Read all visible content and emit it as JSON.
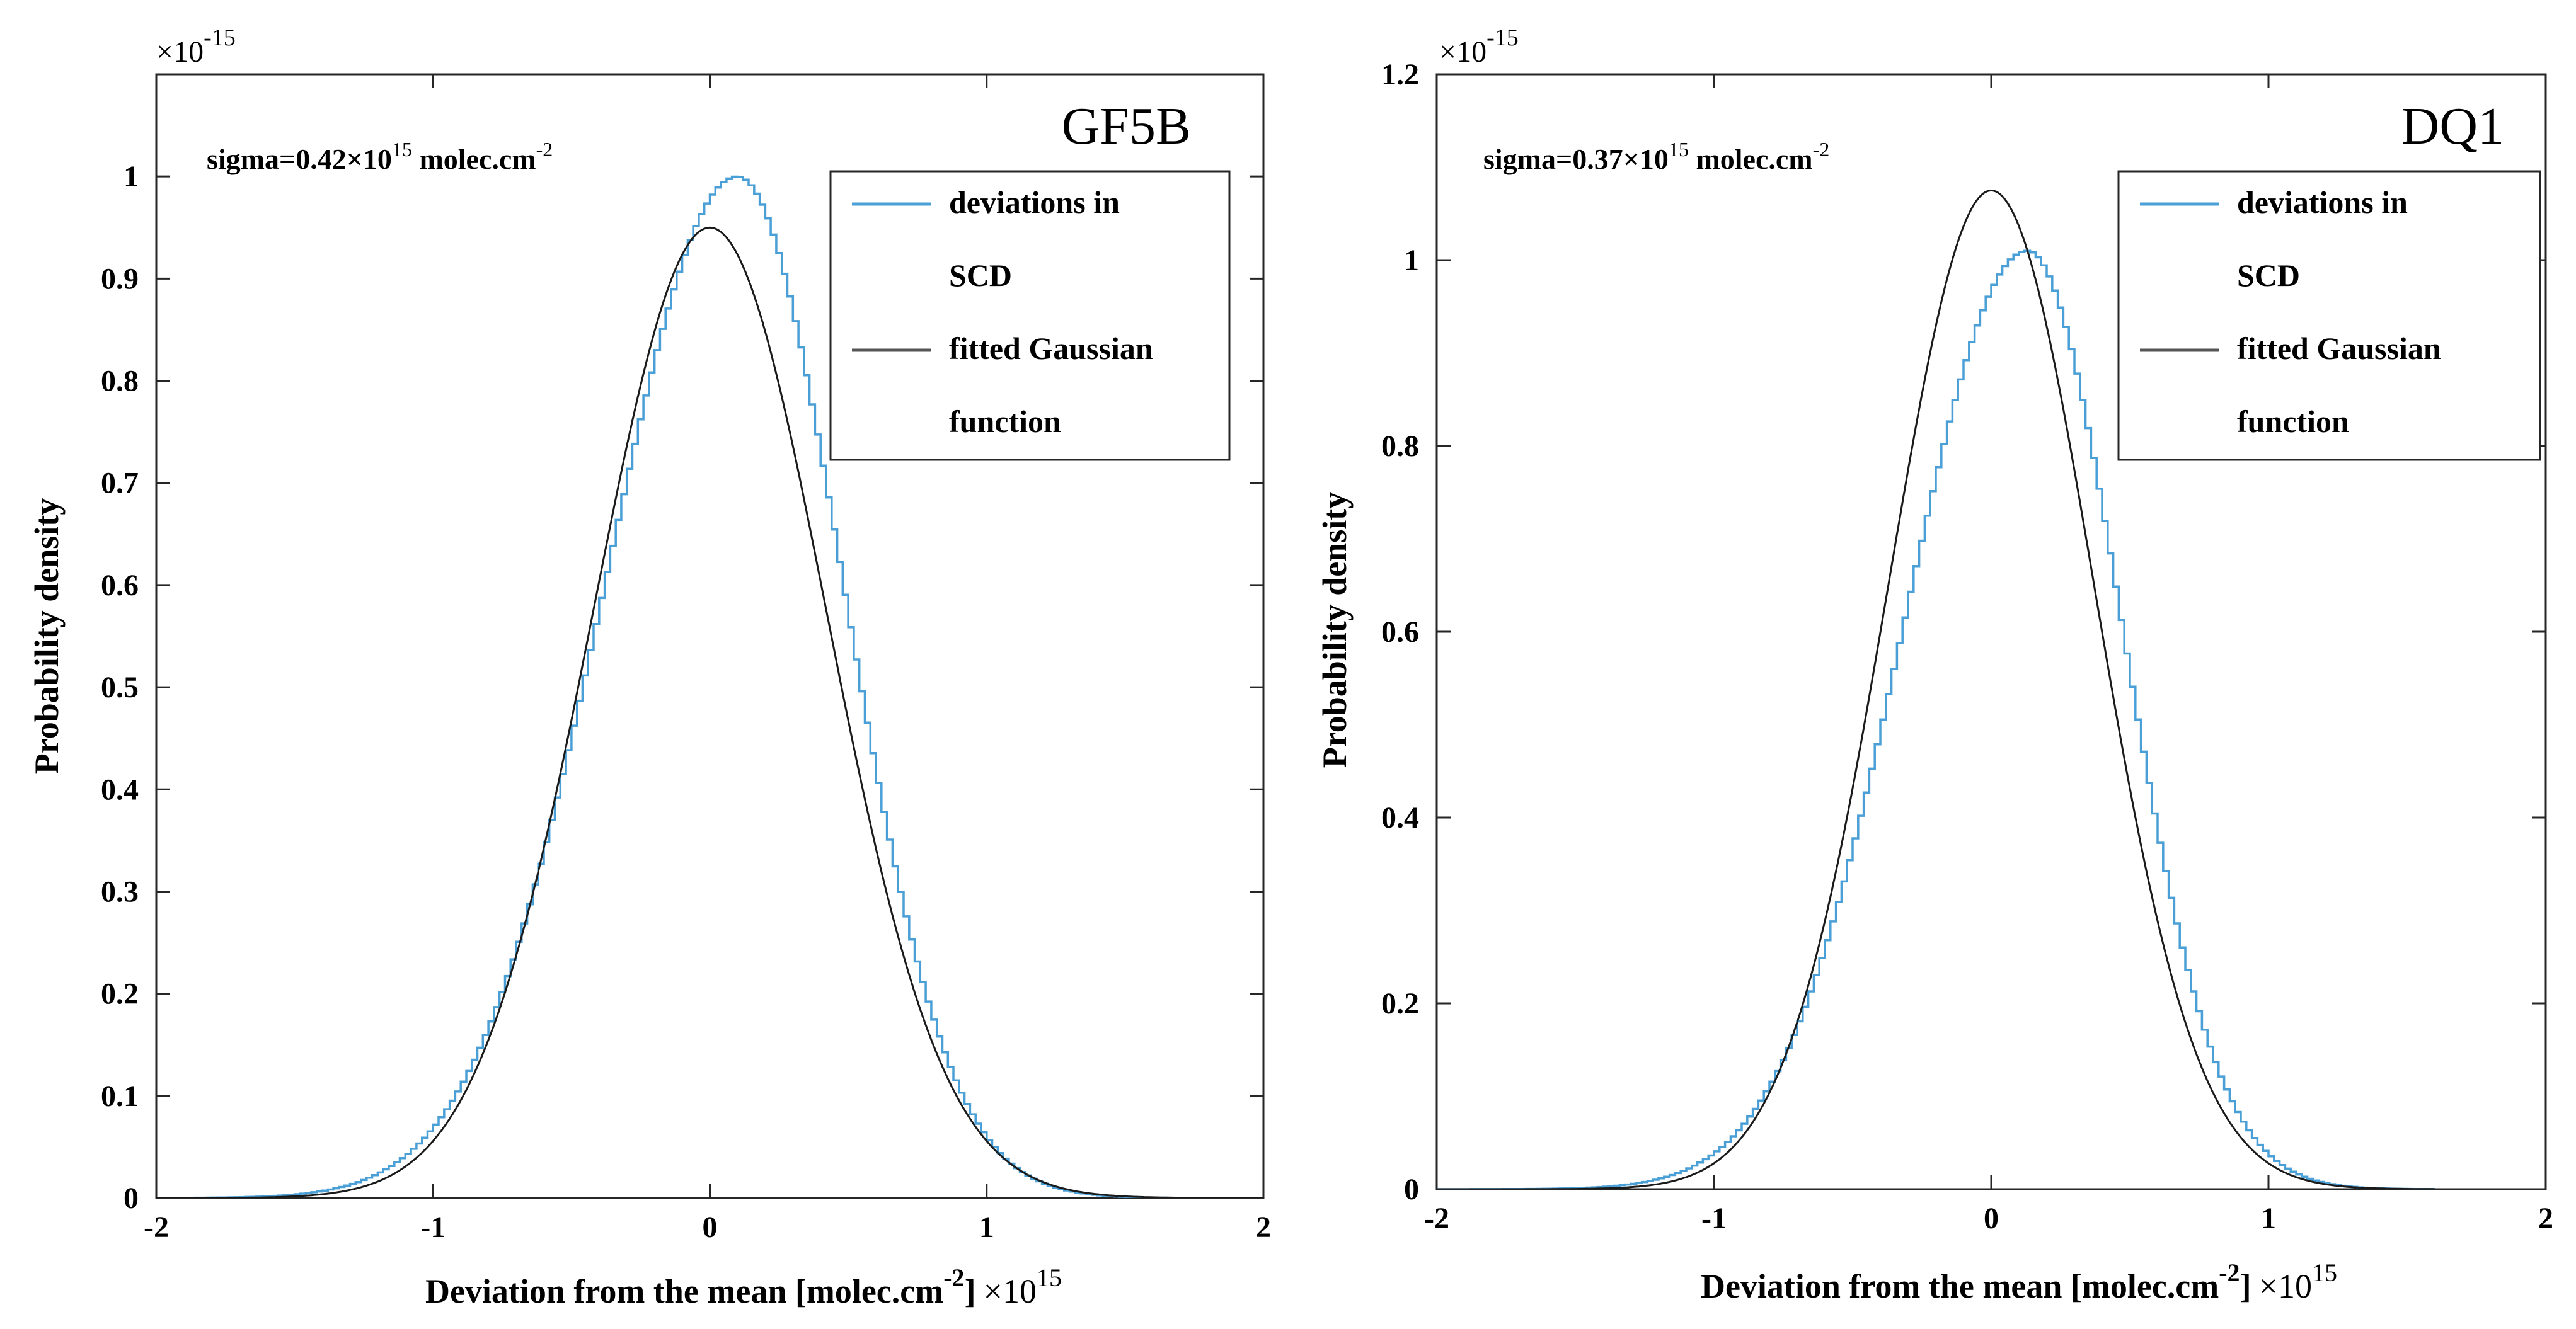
{
  "chart_data": [
    {
      "type": "line",
      "panel_label": "GF5B",
      "annotation": {
        "prefix": "sigma=0.42×10",
        "sup": "15",
        "suffix": " molec.cm",
        "sup2": "-2"
      },
      "xlabel": {
        "main": "Deviation from the mean [molec.cm",
        "sup": "-2",
        "bracket": "]",
        "times": "×10",
        "sup2": "15"
      },
      "ylabel": "Probability density",
      "y_exponent": {
        "base": "×10",
        "sup": "-15"
      },
      "xlim": [
        -2,
        2
      ],
      "ylim": [
        0,
        1.1
      ],
      "xticks": [
        -2,
        -1,
        0,
        1,
        2
      ],
      "xtick_labels": [
        "-2",
        "-1",
        "0",
        "1",
        "2"
      ],
      "yticks": [
        0,
        0.1,
        0.2,
        0.3,
        0.4,
        0.5,
        0.6,
        0.7,
        0.8,
        0.9,
        1
      ],
      "ytick_labels": [
        "0",
        "0.1",
        "0.2",
        "0.3",
        "0.4",
        "0.5",
        "0.6",
        "0.7",
        "0.8",
        "0.9",
        "1"
      ],
      "legend": {
        "location": "top-right",
        "entries": [
          "deviations in",
          "SCD",
          "fitted Gaussian",
          "function"
        ]
      },
      "series": [
        {
          "name": "deviations in SCD",
          "kind": "histogram-stairs",
          "color": "#4a9fd6",
          "mu": 0.1,
          "sigma": 0.38,
          "peak": 1.0,
          "skew_left": 1.25,
          "bin_width": 0.02,
          "x_start": -2.0,
          "x_end": 2.0
        },
        {
          "name": "fitted Gaussian function",
          "kind": "gaussian",
          "color": "#1a1a1a",
          "mu": 0.0,
          "sigma": 0.42,
          "peak": 0.95,
          "x_start": -2.0,
          "x_end": 2.0
        }
      ]
    },
    {
      "type": "line",
      "panel_label": "DQ1",
      "annotation": {
        "prefix": "sigma=0.37×10",
        "sup": "15",
        "suffix": " molec.cm",
        "sup2": "-2"
      },
      "xlabel": {
        "main": "Deviation from the mean [molec.cm",
        "sup": "-2",
        "bracket": "]",
        "times": "×10",
        "sup2": "15"
      },
      "ylabel": "Probability density",
      "y_exponent": {
        "base": "×10",
        "sup": "-15"
      },
      "xlim": [
        -2,
        2
      ],
      "ylim": [
        0,
        1.2
      ],
      "xticks": [
        -2,
        -1,
        0,
        1,
        2
      ],
      "xtick_labels": [
        "-2",
        "-1",
        "0",
        "1",
        "2"
      ],
      "yticks": [
        0,
        0.2,
        0.4,
        0.6,
        0.8,
        1,
        1.2
      ],
      "ytick_labels": [
        "0",
        "0.2",
        "0.4",
        "0.6",
        "0.8",
        "1",
        "1.2"
      ],
      "legend": {
        "location": "top-right",
        "entries": [
          "deviations in",
          "SCD",
          "fitted Gaussian",
          "function"
        ]
      },
      "series": [
        {
          "name": "deviations in SCD",
          "kind": "histogram-stairs",
          "color": "#4a9fd6",
          "mu": 0.13,
          "sigma": 0.34,
          "peak": 1.01,
          "skew_left": 1.3,
          "bin_width": 0.02,
          "x_start": -2.0,
          "x_end": 1.6
        },
        {
          "name": "fitted Gaussian function",
          "kind": "gaussian",
          "color": "#1a1a1a",
          "mu": 0.0,
          "sigma": 0.37,
          "peak": 1.075,
          "x_start": -2.0,
          "x_end": 1.6
        }
      ]
    }
  ]
}
